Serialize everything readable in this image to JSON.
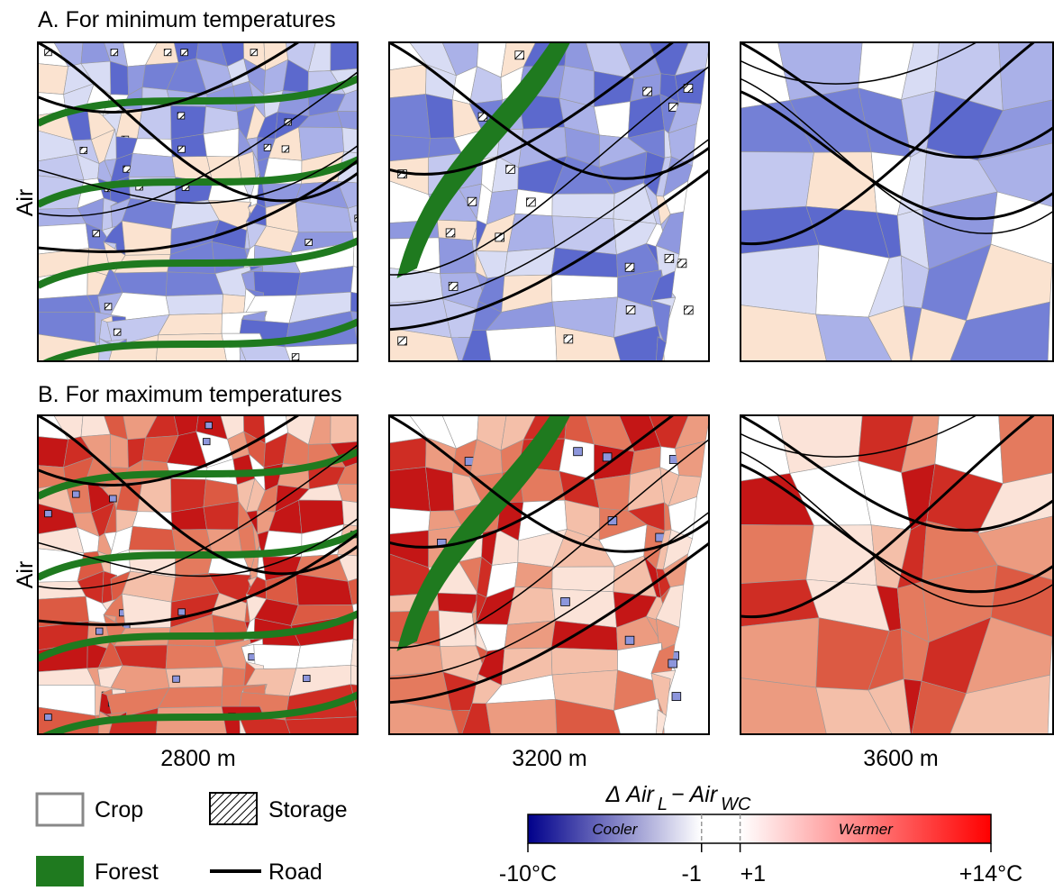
{
  "title_a": "A. For minimum temperatures",
  "title_b": "B. For maximum temperatures",
  "row_labels": [
    "Air",
    "Air"
  ],
  "column_labels": [
    "2800 m",
    "3200 m",
    "3600 m"
  ],
  "legend": {
    "crop": "Crop",
    "storage": "Storage",
    "forest": "Forest",
    "road": "Road"
  },
  "colorbar": {
    "title_parts": [
      "Δ Air",
      "L",
      "− Air",
      "WC"
    ],
    "cooler": "Cooler",
    "warmer": "Warmer",
    "range": [
      -10,
      14
    ],
    "ticks": [
      {
        "value": -10,
        "label": "-10°C"
      },
      {
        "value": -1,
        "label": "-1"
      },
      {
        "value": 1,
        "label": "+1"
      },
      {
        "value": 14,
        "label": "+14°C"
      }
    ]
  }
}
